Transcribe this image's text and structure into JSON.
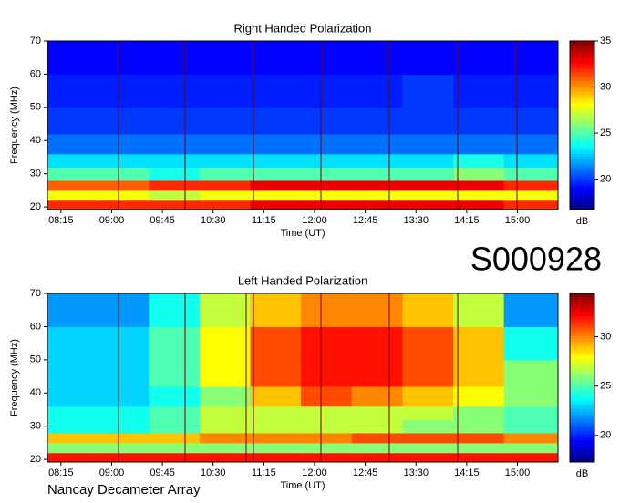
{
  "chart_data": [
    {
      "type": "heatmap",
      "title": "Right Handed Polarization",
      "xlabel": "Time (UT)",
      "ylabel": "Frequency (MHz)",
      "colorbar_label": "dB",
      "xlim": [
        8.05,
        15.6
      ],
      "ylim": [
        19.2,
        70
      ],
      "xticks": [
        {
          "value": 8.25,
          "label": "08:15"
        },
        {
          "value": 9,
          "label": "09:00"
        },
        {
          "value": 9.75,
          "label": "09:45"
        },
        {
          "value": 10.5,
          "label": "10:30"
        },
        {
          "value": 11.25,
          "label": "11:15"
        },
        {
          "value": 12,
          "label": "12:00"
        },
        {
          "value": 12.75,
          "label": "12:45"
        },
        {
          "value": 13.5,
          "label": "13:30"
        },
        {
          "value": 14.25,
          "label": "14:15"
        },
        {
          "value": 15,
          "label": "15:00"
        }
      ],
      "yticks": [
        20,
        30,
        40,
        50,
        60,
        70
      ],
      "zlim": [
        16.7,
        35
      ],
      "zticks": [
        20,
        25,
        30,
        35
      ],
      "colormap": "jet",
      "x_edges": [
        8.05,
        8.8,
        9.55,
        10.3,
        11.05,
        11.8,
        12.55,
        13.3,
        14.05,
        14.8,
        15.6
      ],
      "y_edges": [
        19.2,
        22,
        25,
        28,
        32,
        36,
        42,
        50,
        60,
        70
      ],
      "z": [
        [
          32,
          32,
          32,
          32,
          33,
          33,
          33,
          33,
          33,
          32
        ],
        [
          28,
          28,
          27,
          28,
          28,
          28,
          28,
          28,
          28,
          28
        ],
        [
          31,
          31,
          32,
          32,
          33,
          33,
          33,
          33,
          33,
          32
        ],
        [
          25,
          25,
          24,
          25,
          25,
          25,
          25,
          25,
          26,
          25
        ],
        [
          23,
          23,
          23,
          23,
          23,
          23,
          23,
          23,
          24,
          23
        ],
        [
          21,
          21,
          21,
          21,
          21,
          21,
          21,
          21,
          21,
          21
        ],
        [
          20,
          20,
          20,
          20,
          20,
          20,
          20,
          20,
          20,
          20
        ],
        [
          19.5,
          19.5,
          19.5,
          19.5,
          19.5,
          19.5,
          19.5,
          20,
          19.5,
          19.5
        ],
        [
          19,
          19,
          19,
          19,
          19,
          19,
          19,
          19,
          19,
          19
        ]
      ]
    },
    {
      "type": "heatmap",
      "title": "Left Handed Polarization",
      "xlabel": "Time (UT)",
      "ylabel": "Frequency (MHz)",
      "colorbar_label": "dB",
      "xlim": [
        8.05,
        15.6
      ],
      "ylim": [
        19.2,
        70
      ],
      "xticks": [
        {
          "value": 8.25,
          "label": "08:15"
        },
        {
          "value": 9,
          "label": "09:00"
        },
        {
          "value": 9.75,
          "label": "09:45"
        },
        {
          "value": 10.5,
          "label": "10:30"
        },
        {
          "value": 11.25,
          "label": "11:15"
        },
        {
          "value": 12,
          "label": "12:00"
        },
        {
          "value": 12.75,
          "label": "12:45"
        },
        {
          "value": 13.5,
          "label": "13:30"
        },
        {
          "value": 14.25,
          "label": "14:15"
        },
        {
          "value": 15,
          "label": "15:00"
        }
      ],
      "yticks": [
        20,
        30,
        40,
        50,
        60,
        70
      ],
      "zlim": [
        17.3,
        34.4
      ],
      "zticks": [
        20,
        25,
        30
      ],
      "colormap": "jet",
      "x_edges": [
        8.05,
        8.8,
        9.55,
        10.3,
        11.05,
        11.8,
        12.55,
        13.3,
        14.05,
        14.8,
        15.6
      ],
      "y_edges": [
        19.2,
        22,
        25,
        28,
        32,
        36,
        42,
        50,
        60,
        70
      ],
      "z": [
        [
          32,
          32,
          32,
          32,
          32,
          32,
          32,
          32,
          32,
          32
        ],
        [
          26,
          26,
          26,
          26,
          26,
          26,
          26,
          26,
          26,
          26
        ],
        [
          29,
          29,
          29,
          30,
          30,
          30,
          31,
          31,
          31,
          30
        ],
        [
          24,
          24,
          25,
          27,
          27,
          27,
          27,
          26,
          26,
          25
        ],
        [
          24,
          24,
          25,
          27,
          27,
          27,
          27,
          27,
          26,
          25
        ],
        [
          23,
          23,
          24,
          26,
          29,
          31,
          30,
          29,
          28,
          26
        ],
        [
          23,
          23,
          25,
          28,
          31,
          32,
          32,
          31,
          29,
          26
        ],
        [
          23,
          23,
          25,
          28,
          31,
          32,
          32,
          31,
          29,
          24
        ],
        [
          22,
          22,
          24,
          27,
          29,
          30,
          30,
          29,
          27,
          22
        ]
      ]
    }
  ],
  "page": {
    "id": "S000928",
    "caption": "Nancay Decameter Array"
  }
}
